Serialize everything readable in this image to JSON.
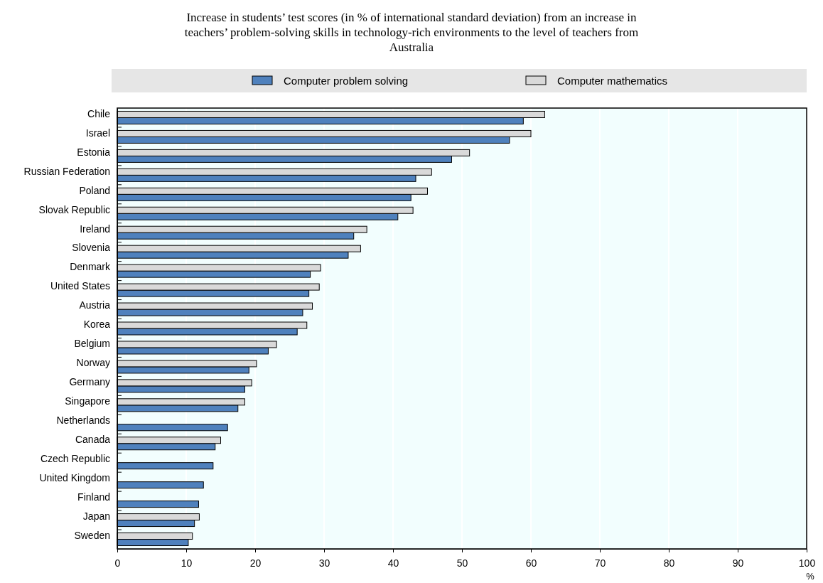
{
  "chart_data": {
    "type": "bar",
    "orientation": "horizontal",
    "title": "Increase in students’ test scores (in % of international standard deviation) from an increase in teachers’ problem-solving skills in technology-rich environments to the level of teachers from Australia",
    "xlabel": "%",
    "categories": [
      "Chile",
      "Israel",
      "Estonia",
      "Russian Federation",
      "Poland",
      "Slovak Republic",
      "Ireland",
      "Slovenia",
      "Denmark",
      "United States",
      "Austria",
      "Korea",
      "Belgium",
      "Norway",
      "Germany",
      "Singapore",
      "Netherlands",
      "Canada",
      "Czech Republic",
      "United Kingdom",
      "Finland",
      "Japan",
      "Sweden"
    ],
    "series": [
      {
        "name": "Computer problem solving",
        "color": "#4f81bd",
        "values": [
          58.9,
          56.9,
          48.5,
          43.3,
          42.6,
          40.7,
          34.3,
          33.5,
          28.0,
          27.8,
          26.9,
          26.1,
          21.9,
          19.1,
          18.5,
          17.5,
          16.0,
          14.2,
          13.9,
          12.5,
          11.8,
          11.2,
          10.3
        ]
      },
      {
        "name": "Computer mathematics",
        "color": "#d9d9d9",
        "values": [
          62.0,
          60.0,
          51.1,
          45.6,
          45.0,
          42.9,
          36.2,
          35.3,
          29.5,
          29.3,
          28.3,
          27.5,
          23.1,
          20.2,
          19.5,
          18.5,
          null,
          15.0,
          null,
          null,
          null,
          11.9,
          10.9
        ]
      }
    ],
    "xlim": [
      0,
      100
    ],
    "xticks": [
      0,
      10,
      20,
      30,
      40,
      50,
      60,
      70,
      80,
      90,
      100
    ],
    "grid": "x",
    "legend": "top"
  }
}
